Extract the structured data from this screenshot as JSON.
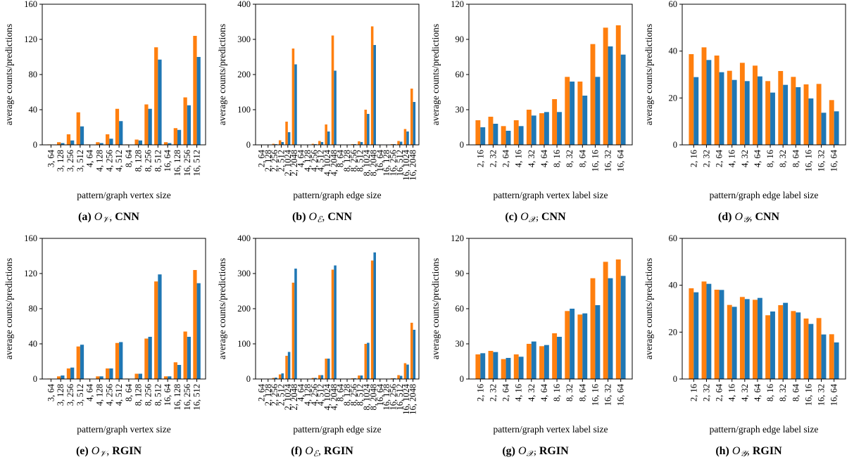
{
  "colors": {
    "first": "#ff7f0e",
    "second": "#1f77b4"
  },
  "chart_data": [
    {
      "type": "bar",
      "caption": {
        "letter": "(a)",
        "symbol": "O",
        "sub": "𝒱",
        "model": "CNN"
      },
      "xlabel": "pattern/graph vertex size",
      "ylabel": "average counts/predictions",
      "ylim": [
        0,
        160
      ],
      "yticks": [
        0,
        40,
        80,
        120,
        160
      ],
      "categories": [
        "3, 64",
        "3, 128",
        "3, 256",
        "3, 512",
        "4, 64",
        "4, 128",
        "4, 256",
        "4, 512",
        "8, 64",
        "8, 128",
        "8, 256",
        "8, 512",
        "16, 64",
        "16, 128",
        "16, 256",
        "16, 512"
      ],
      "series": [
        {
          "values": [
            0.5,
            3,
            12,
            37,
            0.5,
            3,
            12,
            41,
            0.5,
            6,
            46,
            111,
            3,
            19,
            54,
            124
          ]
        },
        {
          "values": [
            0.3,
            2,
            5,
            21,
            0.3,
            2,
            7,
            27,
            0.3,
            5,
            41,
            97,
            2,
            17,
            45,
            100
          ]
        }
      ]
    },
    {
      "type": "bar",
      "caption": {
        "letter": "(b)",
        "symbol": "O",
        "sub": "ℰ",
        "model": "CNN"
      },
      "xlabel": "pattern/graph edge size",
      "ylabel": "average counts/predictions",
      "ylim": [
        0,
        400
      ],
      "yticks": [
        0,
        100,
        200,
        300,
        400
      ],
      "categories": [
        "2, 64",
        "2, 128",
        "2, 256",
        "2, 512",
        "2, 1024",
        "2, 2048",
        "4, 64",
        "4, 128",
        "4, 256",
        "4, 512",
        "4, 1024",
        "4, 2048",
        "8, 64",
        "8, 128",
        "8, 256",
        "8, 512",
        "8, 1024",
        "8, 2048",
        "16, 64",
        "16, 128",
        "16, 256",
        "16, 512",
        "16, 1024",
        "16, 2048"
      ],
      "series": [
        {
          "values": [
            0.5,
            1,
            3,
            13,
            66,
            274,
            0.5,
            1,
            3,
            11,
            58,
            311,
            0.5,
            1,
            2,
            10,
            100,
            337,
            0.5,
            1,
            2,
            11,
            45,
            160
          ]
        },
        {
          "values": [
            0.3,
            0.5,
            2,
            8,
            36,
            229,
            0.3,
            0.5,
            2,
            8,
            38,
            211,
            0.3,
            0.5,
            2,
            8,
            88,
            284,
            0.3,
            0.5,
            2,
            9,
            38,
            122
          ]
        }
      ]
    },
    {
      "type": "bar",
      "caption": {
        "letter": "(c)",
        "symbol": "O",
        "sub": "𝒳",
        "model": "CNN"
      },
      "xlabel": "pattern/graph vertex label size",
      "ylabel": "average counts/predictions",
      "ylim": [
        0,
        120
      ],
      "yticks": [
        0,
        30,
        60,
        90,
        120
      ],
      "categories": [
        "2, 16",
        "2, 32",
        "2, 64",
        "4, 16",
        "4, 32",
        "4, 64",
        "8, 16",
        "8, 32",
        "8, 64",
        "16, 16",
        "16, 32",
        "16, 64"
      ],
      "series": [
        {
          "values": [
            21,
            24,
            16,
            21,
            30,
            27,
            39,
            58,
            54,
            86,
            100,
            102
          ]
        },
        {
          "values": [
            15,
            18,
            12,
            16,
            25,
            28,
            28,
            54,
            42,
            58,
            84,
            77
          ]
        }
      ]
    },
    {
      "type": "bar",
      "caption": {
        "letter": "(d)",
        "symbol": "O",
        "sub": "𝒴",
        "model": "CNN"
      },
      "xlabel": "pattern/graph edge label size",
      "ylabel": "average counts/predictions",
      "ylim": [
        0,
        60
      ],
      "yticks": [
        0,
        20,
        40,
        60
      ],
      "categories": [
        "2, 16",
        "2, 32",
        "2, 64",
        "4, 16",
        "4, 32",
        "4, 64",
        "8, 16",
        "8, 32",
        "8, 64",
        "16, 16",
        "16, 32",
        "16, 64"
      ],
      "series": [
        {
          "values": [
            38.7,
            41.6,
            38.1,
            31.6,
            35.0,
            33.8,
            27.2,
            31.5,
            29.0,
            25.8,
            26.0,
            19.1
          ]
        },
        {
          "values": [
            28.9,
            36.2,
            31.0,
            27.7,
            27.2,
            29.2,
            22.3,
            25.6,
            24.6,
            19.8,
            13.7,
            14.3
          ]
        }
      ]
    },
    {
      "type": "bar",
      "caption": {
        "letter": "(e)",
        "symbol": "O",
        "sub": "𝒱",
        "model": "RGIN"
      },
      "xlabel": "pattern/graph vertex size",
      "ylabel": "average counts/predictions",
      "ylim": [
        0,
        160
      ],
      "yticks": [
        0,
        40,
        80,
        120,
        160
      ],
      "categories": [
        "3, 64",
        "3, 128",
        "3, 256",
        "3, 512",
        "4, 64",
        "4, 128",
        "4, 256",
        "4, 512",
        "8, 64",
        "8, 128",
        "8, 256",
        "8, 512",
        "16, 64",
        "16, 128",
        "16, 256",
        "16, 512"
      ],
      "series": [
        {
          "values": [
            0.5,
            3,
            12,
            37,
            0.5,
            3,
            12,
            41,
            0.5,
            6,
            46,
            111,
            3,
            19,
            54,
            124
          ]
        },
        {
          "values": [
            0.3,
            4,
            13,
            39,
            0.3,
            3,
            12,
            42,
            0.3,
            6,
            48,
            119,
            3,
            16,
            48,
            109
          ]
        }
      ]
    },
    {
      "type": "bar",
      "caption": {
        "letter": "(f)",
        "symbol": "O",
        "sub": "ℰ",
        "model": "RGIN"
      },
      "xlabel": "pattern/graph edge size",
      "ylabel": "average counts/predictions",
      "ylim": [
        0,
        400
      ],
      "yticks": [
        0,
        100,
        200,
        300,
        400
      ],
      "categories": [
        "2, 64",
        "2, 128",
        "2, 256",
        "2, 512",
        "2, 1024",
        "2, 2048",
        "4, 64",
        "4, 128",
        "4, 256",
        "4, 512",
        "4, 1024",
        "4, 2048",
        "8, 64",
        "8, 128",
        "8, 256",
        "8, 512",
        "8, 1024",
        "8, 2048",
        "16, 64",
        "16, 128",
        "16, 256",
        "16, 512",
        "16, 1024",
        "16, 2048"
      ],
      "series": [
        {
          "values": [
            0.5,
            1,
            3,
            13,
            66,
            274,
            0.5,
            1,
            3,
            11,
            58,
            311,
            0.5,
            1,
            2,
            10,
            100,
            337,
            0.5,
            1,
            2,
            11,
            45,
            160
          ]
        },
        {
          "values": [
            0.3,
            1,
            4,
            16,
            77,
            314,
            0.3,
            1,
            3,
            11,
            58,
            323,
            0.3,
            1,
            2,
            10,
            103,
            360,
            0.3,
            1,
            2,
            9,
            41,
            140
          ]
        }
      ]
    },
    {
      "type": "bar",
      "caption": {
        "letter": "(g)",
        "symbol": "O",
        "sub": "𝒳",
        "model": "RGIN"
      },
      "xlabel": "pattern/graph vertex label size",
      "ylabel": "average counts/predictions",
      "ylim": [
        0,
        120
      ],
      "yticks": [
        0,
        30,
        60,
        90,
        120
      ],
      "categories": [
        "2, 16",
        "2, 32",
        "2, 64",
        "4, 16",
        "4, 32",
        "4, 64",
        "8, 16",
        "8, 32",
        "8, 64",
        "16, 16",
        "16, 32",
        "16, 64"
      ],
      "series": [
        {
          "values": [
            21,
            24,
            17,
            21,
            30,
            28,
            39,
            58,
            55,
            86,
            100,
            102
          ]
        },
        {
          "values": [
            22,
            23,
            18,
            19,
            32,
            29,
            36,
            60,
            56,
            63,
            86,
            88
          ]
        }
      ]
    },
    {
      "type": "bar",
      "caption": {
        "letter": "(h)",
        "symbol": "O",
        "sub": "𝒴",
        "model": "RGIN"
      },
      "xlabel": "pattern/graph edge label size",
      "ylabel": "average counts/predictions",
      "ylim": [
        0,
        60
      ],
      "yticks": [
        0,
        20,
        40,
        60
      ],
      "categories": [
        "2, 16",
        "2, 32",
        "2, 64",
        "4, 16",
        "4, 32",
        "4, 64",
        "8, 16",
        "8, 32",
        "8, 64",
        "16, 16",
        "16, 32",
        "16, 64"
      ],
      "series": [
        {
          "values": [
            38.7,
            41.6,
            38.1,
            31.6,
            35.0,
            33.8,
            27.2,
            31.5,
            29.0,
            25.8,
            26.0,
            19.1
          ]
        },
        {
          "values": [
            37.0,
            40.6,
            38.0,
            30.8,
            34.1,
            34.6,
            28.8,
            32.5,
            28.4,
            23.5,
            19.0,
            15.6
          ]
        }
      ]
    }
  ]
}
